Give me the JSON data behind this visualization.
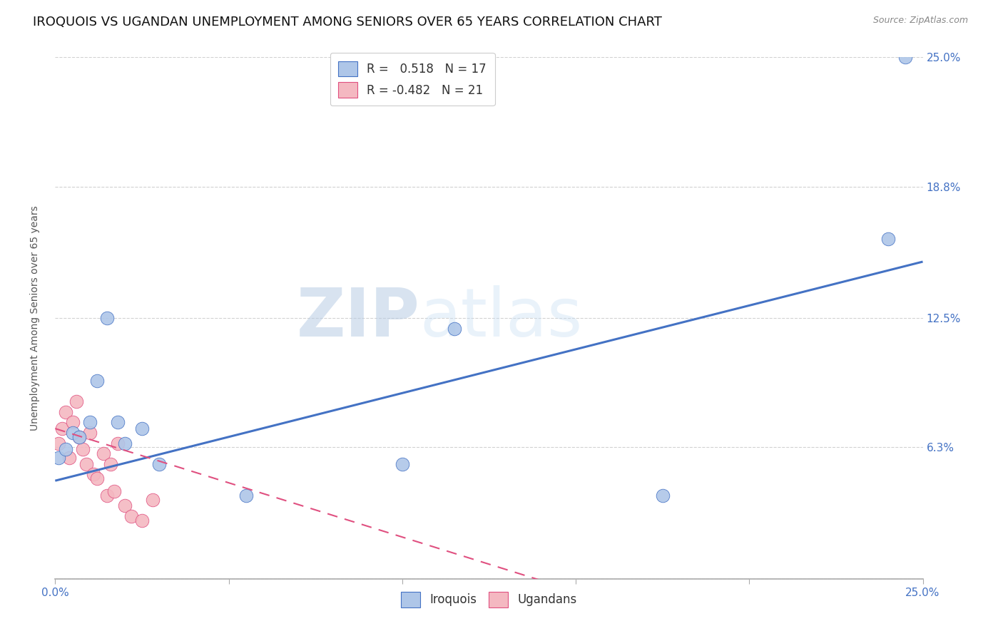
{
  "title": "IROQUOIS VS UGANDAN UNEMPLOYMENT AMONG SENIORS OVER 65 YEARS CORRELATION CHART",
  "source": "Source: ZipAtlas.com",
  "ylabel": "Unemployment Among Seniors over 65 years",
  "xlim": [
    0.0,
    0.25
  ],
  "ylim": [
    0.0,
    0.25
  ],
  "iroquois_x": [
    0.001,
    0.003,
    0.005,
    0.007,
    0.01,
    0.012,
    0.015,
    0.018,
    0.02,
    0.025,
    0.03,
    0.055,
    0.1,
    0.115,
    0.175,
    0.24,
    0.245
  ],
  "iroquois_y": [
    0.058,
    0.062,
    0.07,
    0.068,
    0.075,
    0.095,
    0.125,
    0.075,
    0.065,
    0.072,
    0.055,
    0.04,
    0.055,
    0.12,
    0.04,
    0.163,
    0.25
  ],
  "ugandans_x": [
    0.001,
    0.002,
    0.003,
    0.004,
    0.005,
    0.006,
    0.007,
    0.008,
    0.009,
    0.01,
    0.011,
    0.012,
    0.014,
    0.015,
    0.016,
    0.017,
    0.018,
    0.02,
    0.022,
    0.025,
    0.028
  ],
  "ugandans_y": [
    0.065,
    0.072,
    0.08,
    0.058,
    0.075,
    0.085,
    0.068,
    0.062,
    0.055,
    0.07,
    0.05,
    0.048,
    0.06,
    0.04,
    0.055,
    0.042,
    0.065,
    0.035,
    0.03,
    0.028,
    0.038
  ],
  "iroquois_color": "#aec6e8",
  "ugandans_color": "#f4b8c1",
  "iroquois_line_color": "#4472c4",
  "ugandans_line_color": "#e05080",
  "legend_r_iroquois": "R =   0.518",
  "legend_n_iroquois": "N = 17",
  "legend_r_ugandans": "R = -0.482",
  "legend_n_ugandans": "N = 21",
  "watermark_zip": "ZIP",
  "watermark_atlas": "atlas",
  "background_color": "#ffffff",
  "grid_color": "#cccccc",
  "title_fontsize": 13,
  "axis_label_fontsize": 10,
  "tick_fontsize": 11,
  "marker_size": 180,
  "iroquois_line_b": 0.047,
  "iroquois_line_m": 0.42,
  "ugandans_line_b": 0.072,
  "ugandans_line_m": -0.52
}
